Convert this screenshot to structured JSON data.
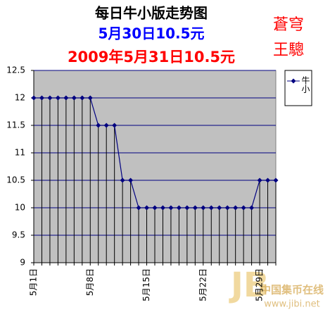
{
  "chart_data": {
    "type": "line",
    "title": "每日牛小版走势图",
    "subtitle": [
      "5月30日10.5元",
      "2009年5月31日10.5元"
    ],
    "annotations": [
      "蒼穹",
      "王驄"
    ],
    "watermark": [
      "中国集币在线",
      "www.jibi.net"
    ],
    "categories": [
      "5月1日",
      null,
      null,
      null,
      null,
      null,
      null,
      "5月8日",
      null,
      null,
      null,
      null,
      null,
      null,
      "5月15日",
      null,
      null,
      null,
      null,
      null,
      null,
      "5月22日",
      null,
      null,
      null,
      null,
      null,
      null,
      "5月29日",
      null,
      null
    ],
    "series": [
      {
        "name": "牛小",
        "color": "#000080",
        "values": [
          12,
          12,
          12,
          12,
          12,
          12,
          12,
          12,
          11.5,
          11.5,
          11.5,
          10.5,
          10.5,
          10,
          10,
          10,
          10,
          10,
          10,
          10,
          10,
          10,
          10,
          10,
          10,
          10,
          10,
          10,
          10.5,
          10.5,
          10.5
        ]
      }
    ],
    "ylim": [
      9,
      12.5
    ],
    "yticks": [
      9,
      9.5,
      10,
      10.5,
      11,
      11.5,
      12,
      12.5
    ],
    "grid": true,
    "drop_lines": true,
    "legend": "right"
  }
}
